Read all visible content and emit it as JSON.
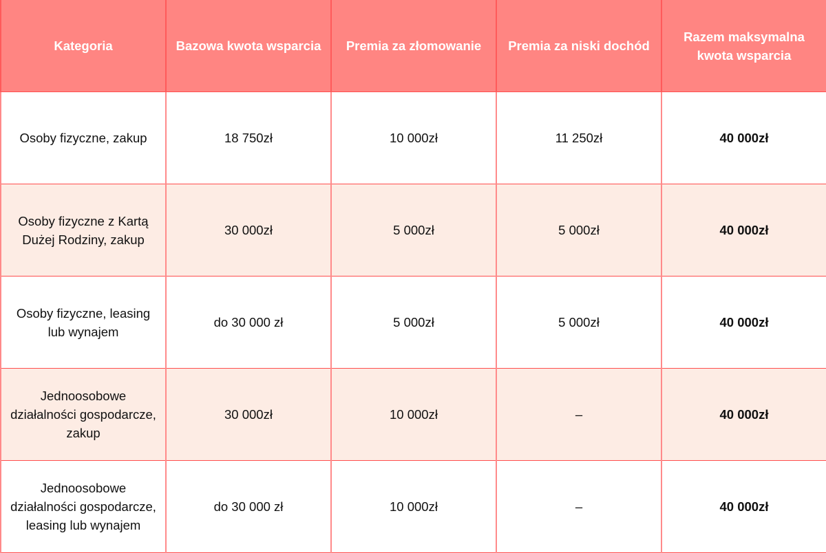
{
  "table": {
    "headers": [
      "Kategoria",
      "Bazowa kwota wsparcia",
      "Premia za złomowanie",
      "Premia za niski dochód",
      "Razem maksymalna kwota wsparcia"
    ],
    "rows": [
      [
        "Osoby fizyczne, zakup",
        "18 750zł",
        "10 000zł",
        "11 250zł",
        "40 000zł"
      ],
      [
        "Osoby fizyczne z Kartą Dużej Rodziny, zakup",
        "30 000zł",
        "5 000zł",
        "5 000zł",
        "40 000zł"
      ],
      [
        "Osoby fizyczne, leasing lub wynajem",
        "do 30 000 zł",
        "5 000zł",
        "5 000zł",
        "40 000zł"
      ],
      [
        "Jednoosobowe działalności gospodarcze, zakup",
        "30 000zł",
        "10 000zł",
        "–",
        "40 000zł"
      ],
      [
        "Jednoosobowe działalności gospodarcze, leasing lub wynajem",
        "do 30 000 zł",
        "10 000zł",
        "–",
        "40 000zł"
      ]
    ]
  },
  "colors": {
    "header_bg": "#FF8582",
    "alt_row_bg": "#FDECE4",
    "border": "#FF4D4D"
  }
}
